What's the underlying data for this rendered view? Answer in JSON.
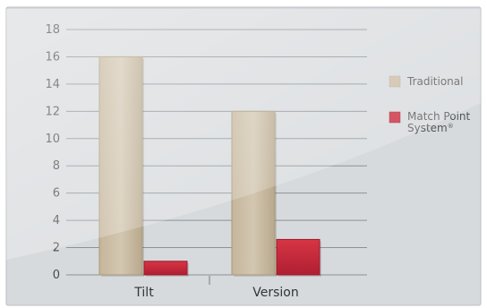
{
  "chart_data": {
    "type": "bar",
    "categories": [
      "Tilt",
      "Version"
    ],
    "series": [
      {
        "name": "Traditional",
        "values": [
          16,
          12
        ],
        "color": "#c9bba3"
      },
      {
        "name": "Match Point System",
        "values": [
          1,
          2.6
        ],
        "color": "#c8283a"
      }
    ],
    "legend_superscript": "®",
    "ylim": [
      0,
      18
    ],
    "yticks": [
      "0",
      "2",
      "4",
      "6",
      "8",
      "10",
      "12",
      "14",
      "16",
      "18"
    ],
    "grid": true,
    "legend_position": "right",
    "background": "#d7dadd",
    "panel_border": "#b9bec2"
  }
}
